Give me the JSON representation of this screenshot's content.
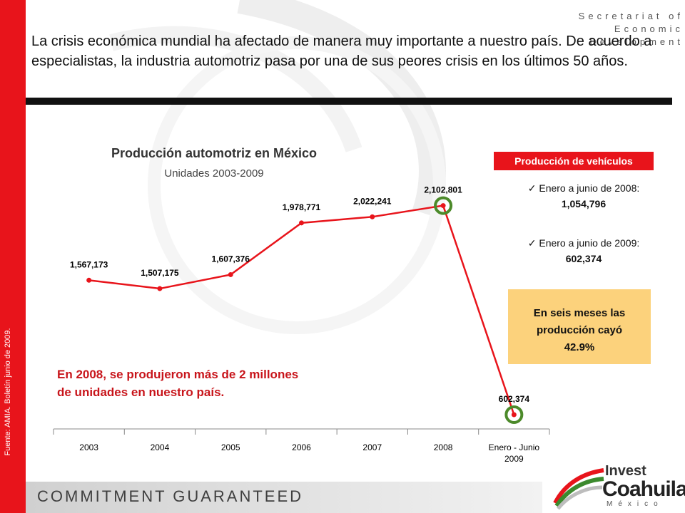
{
  "header": {
    "org_line1": "Secretariat of Economic",
    "org_line2": "Development",
    "headline": "La crisis económica mundial ha afectado de manera muy importante a nuestro país. De acuerdo a especialistas, la industria automotriz pasa por una de sus peores crisis en los últimos 50 años."
  },
  "source_note": "Fuente: AMIA. Boletín junio de 2009.",
  "chart_data": {
    "type": "line",
    "title": "Producción automotriz en México",
    "subtitle": "Unidades 2003-2009",
    "xlabel": "",
    "ylabel": "",
    "categories": [
      "2003",
      "2004",
      "2005",
      "2006",
      "2007",
      "2008",
      "Enero - Junio 2009"
    ],
    "series": [
      {
        "name": "Producción automotriz",
        "values": [
          1567173,
          1507175,
          1607376,
          1978771,
          2022241,
          2102801,
          602374
        ]
      }
    ],
    "data_labels": [
      "1,567,173",
      "1,507,175",
      "1,607,376",
      "1,978,771",
      "2,022,241",
      "2,102,801",
      "602,374"
    ],
    "highlighted": [
      "2008",
      "Enero - Junio 2009"
    ],
    "ylim": [
      500000,
      2300000
    ],
    "grid": false,
    "series_color": "#e8141b",
    "highlight_color": "#4c8a2a"
  },
  "panel": {
    "badge": "Producción de vehículos",
    "stats": [
      {
        "label": "Enero a junio de 2008:",
        "value": "1,054,796"
      },
      {
        "label": "Enero a junio de 2009:",
        "value": "602,374"
      }
    ],
    "note_line1": "En seis meses las",
    "note_line2": "producción cayó",
    "note_line3": "42.9%"
  },
  "callout_line1": "En 2008, se produjeron más de 2 millones",
  "callout_line2": "de unidades en nuestro país.",
  "footer": {
    "slogan": "COMMITMENT GUARANTEED",
    "logo_word1": "Invest",
    "logo_word2": "Coahuila",
    "logo_word3": "México"
  },
  "colors": {
    "accent_red": "#e8141b",
    "note_bg": "#fcd27c",
    "circle_green": "#4c8a2a"
  }
}
